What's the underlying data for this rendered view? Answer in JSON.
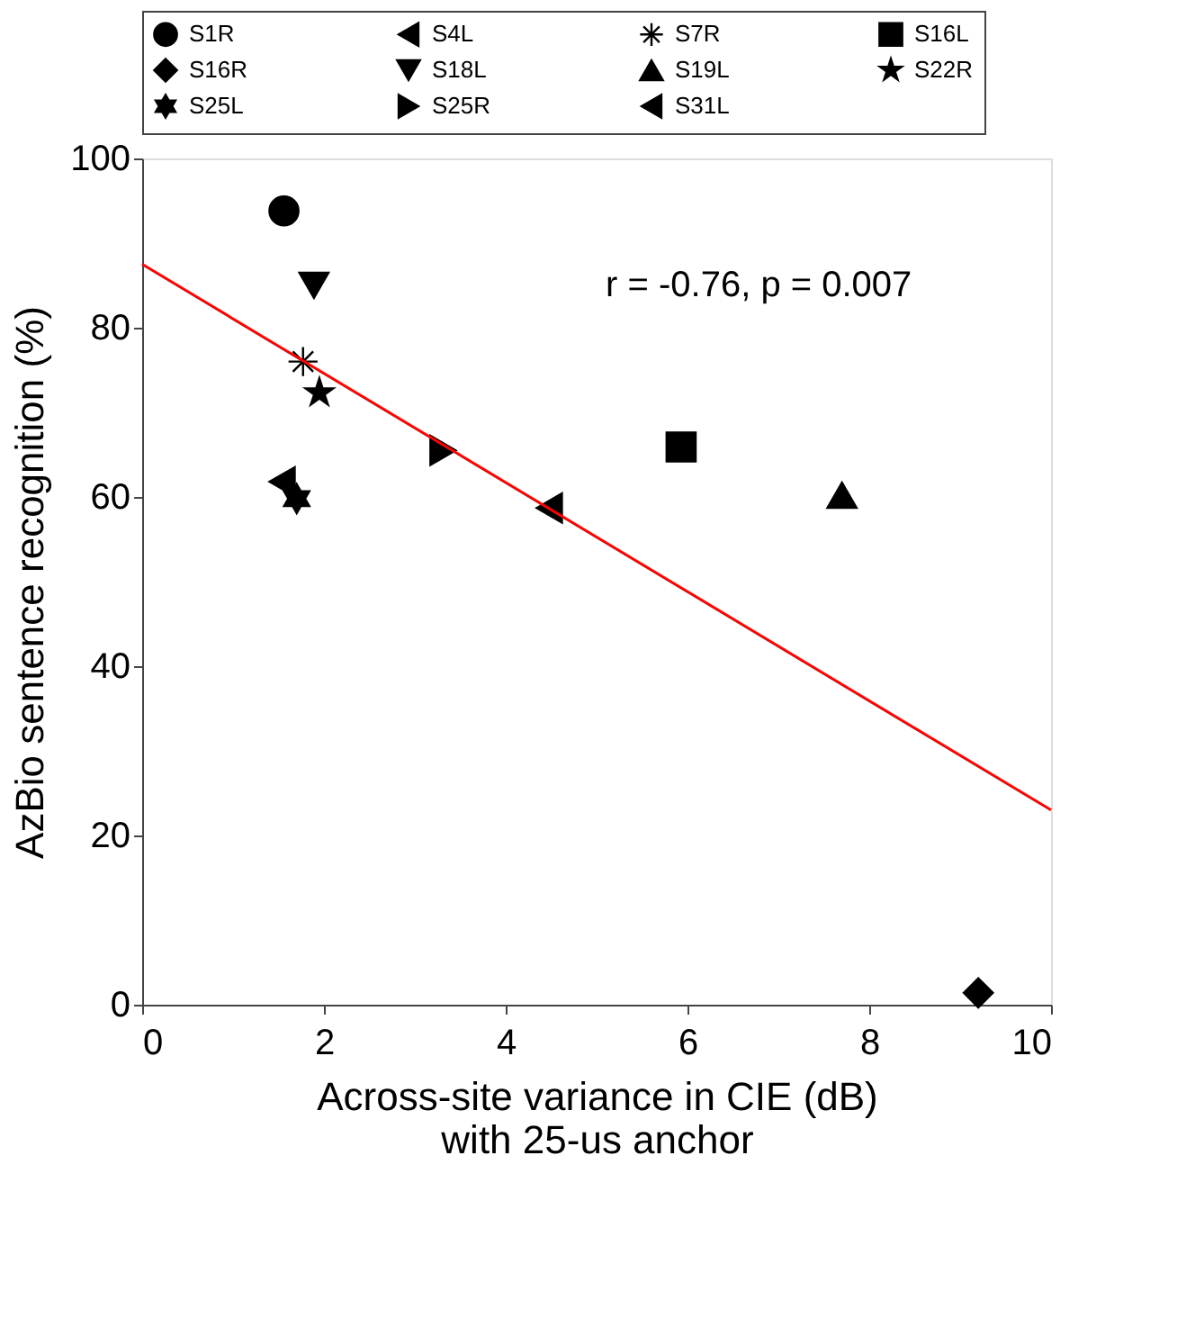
{
  "chart_data": {
    "type": "scatter",
    "xlabel": "Across-site variance in CIE (dB)\nwith 25-us anchor",
    "ylabel": "AzBio sentence recognition (%)",
    "xlim": [
      0,
      10
    ],
    "ylim": [
      0,
      100
    ],
    "xticks": [
      0,
      2,
      4,
      6,
      8,
      10
    ],
    "yticks": [
      0,
      20,
      40,
      60,
      80,
      100
    ],
    "legend": "top",
    "annotations": [
      "r = -0.76, p = 0.007"
    ],
    "series": [
      {
        "name": "S1R",
        "marker": "circle",
        "color": "#000000",
        "x": [
          1.56
        ],
        "values": [
          93.8
        ]
      },
      {
        "name": "S4L",
        "marker": "triangle-left",
        "color": "#000000",
        "x": [
          1.54
        ],
        "values": [
          61.8
        ]
      },
      {
        "name": "S7R",
        "marker": "cross",
        "color": "#000000",
        "x": [
          1.77
        ],
        "values": [
          76.0
        ]
      },
      {
        "name": "S16L",
        "marker": "square",
        "color": "#000000",
        "x": [
          5.93
        ],
        "values": [
          65.9
        ]
      },
      {
        "name": "S16R",
        "marker": "diamond",
        "color": "#000000",
        "x": [
          9.2
        ],
        "values": [
          1.4
        ]
      },
      {
        "name": "S18L",
        "marker": "triangle-down",
        "color": "#000000",
        "x": [
          1.89
        ],
        "values": [
          85.0
        ]
      },
      {
        "name": "S19L",
        "marker": "triangle-up",
        "color": "#000000",
        "x": [
          7.7
        ],
        "values": [
          60.2
        ]
      },
      {
        "name": "S22R",
        "marker": "star",
        "color": "#000000",
        "x": [
          1.95
        ],
        "values": [
          72.3
        ]
      },
      {
        "name": "S25L",
        "color": "#000000",
        "x": [
          1.7
        ],
        "values": [
          59.8
        ]
      },
      {
        "name": "S25R",
        "marker": "triangle-right",
        "color": "#000000",
        "x": [
          3.31
        ],
        "values": [
          65.5
        ]
      },
      {
        "name": "S31L",
        "marker": "triangle-left",
        "color": "#000000",
        "x": [
          4.48
        ],
        "values": [
          58.7
        ]
      },
      {
        "type": "line",
        "color": "#ff0000",
        "x": [
          0,
          10
        ],
        "values": [
          87.5,
          23.0
        ]
      }
    ]
  }
}
